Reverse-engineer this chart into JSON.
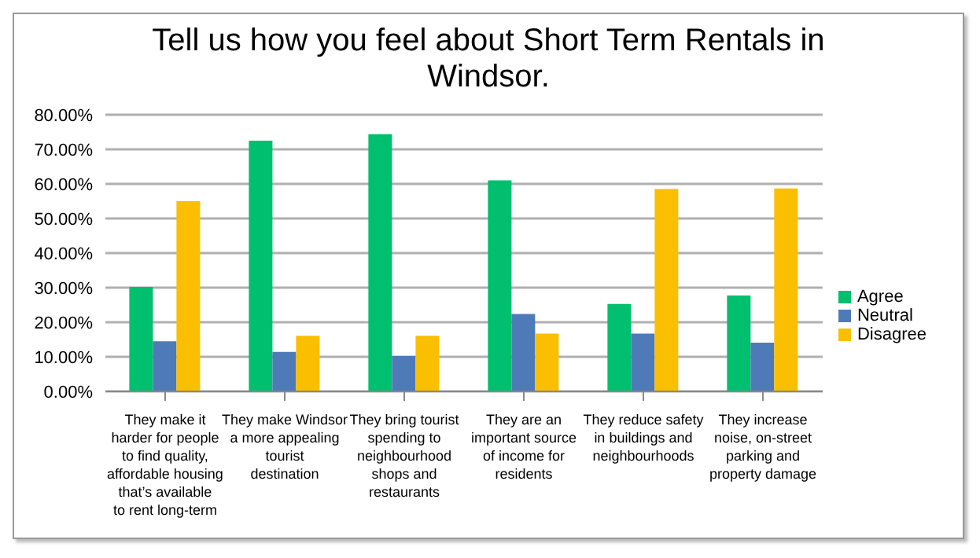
{
  "chart_data": {
    "type": "bar",
    "title": "Tell us how you feel about Short Term Rentals in Windsor.",
    "categories": [
      "They make it harder for people to find quality, affordable housing that’s available to rent long-term",
      "They make Windsor a more appealing tourist destination",
      "They bring tourist spending to neighbourhood shops and restaurants",
      "They are an important source of income for residents",
      "They reduce safety in buildings and neighbourhoods",
      "They increase noise, on-street parking and property damage"
    ],
    "series": [
      {
        "name": "Agree",
        "color": "#00bf6f",
        "values": [
          30.2,
          72.5,
          74.4,
          61.0,
          25.3,
          27.7
        ]
      },
      {
        "name": "Neutral",
        "color": "#4f7ab8",
        "values": [
          14.5,
          11.4,
          10.2,
          22.4,
          16.7,
          14.1
        ]
      },
      {
        "name": "Disagree",
        "color": "#f9bf00",
        "values": [
          55.0,
          16.1,
          16.1,
          16.7,
          58.5,
          58.7
        ]
      }
    ],
    "ylim": [
      0,
      80
    ],
    "yticks": [
      {
        "value": 0,
        "label": "0.00%"
      },
      {
        "value": 10,
        "label": "10.00%"
      },
      {
        "value": 20,
        "label": "20.00%"
      },
      {
        "value": 30,
        "label": "30.00%"
      },
      {
        "value": 40,
        "label": "40.00%"
      },
      {
        "value": 50,
        "label": "50.00%"
      },
      {
        "value": 60,
        "label": "60.00%"
      },
      {
        "value": 70,
        "label": "70.00%"
      },
      {
        "value": 80,
        "label": "80.00%"
      }
    ],
    "grid": "y",
    "legend": "right"
  }
}
